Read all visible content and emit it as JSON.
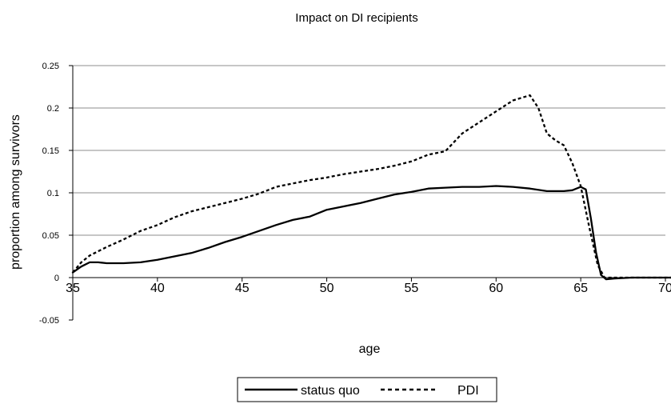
{
  "chart_data": {
    "type": "line",
    "title": "Impact on DI recipients",
    "xlabel": "age",
    "ylabel": "proportion among survivors",
    "xlim": [
      35,
      70
    ],
    "ylim": [
      -0.05,
      0.25
    ],
    "x_ticks": [
      "35",
      "40",
      "45",
      "50",
      "55",
      "60",
      "65",
      "70"
    ],
    "y_ticks": [
      "0.25",
      "0.2",
      "0.15",
      "0.1",
      "0.05",
      "0",
      "-0.05"
    ],
    "grid": "horizontal",
    "legend_position": "bottom",
    "series": [
      {
        "name": "status quo",
        "style": "solid",
        "color": "#000000",
        "points": [
          [
            35.0,
            0.006
          ],
          [
            35.5,
            0.013
          ],
          [
            36.0,
            0.018
          ],
          [
            36.5,
            0.018
          ],
          [
            37.0,
            0.017
          ],
          [
            38.0,
            0.017
          ],
          [
            39.0,
            0.018
          ],
          [
            40.0,
            0.021
          ],
          [
            41.0,
            0.025
          ],
          [
            42.0,
            0.029
          ],
          [
            43.0,
            0.035
          ],
          [
            44.0,
            0.042
          ],
          [
            45.0,
            0.048
          ],
          [
            46.0,
            0.055
          ],
          [
            47.0,
            0.062
          ],
          [
            48.0,
            0.068
          ],
          [
            49.0,
            0.072
          ],
          [
            50.0,
            0.08
          ],
          [
            51.0,
            0.084
          ],
          [
            52.0,
            0.088
          ],
          [
            53.0,
            0.093
          ],
          [
            54.0,
            0.098
          ],
          [
            55.0,
            0.101
          ],
          [
            56.0,
            0.105
          ],
          [
            57.0,
            0.106
          ],
          [
            58.0,
            0.107
          ],
          [
            59.0,
            0.107
          ],
          [
            60.0,
            0.108
          ],
          [
            61.0,
            0.107
          ],
          [
            62.0,
            0.105
          ],
          [
            63.0,
            0.102
          ],
          [
            64.0,
            0.102
          ],
          [
            64.5,
            0.103
          ],
          [
            65.0,
            0.107
          ],
          [
            65.3,
            0.104
          ],
          [
            65.6,
            0.07
          ],
          [
            65.9,
            0.03
          ],
          [
            66.2,
            0.003
          ],
          [
            66.5,
            -0.002
          ],
          [
            67.0,
            -0.001
          ],
          [
            68.0,
            0.0
          ],
          [
            69.0,
            0.0
          ],
          [
            70.0,
            0.0
          ],
          [
            70.5,
            0.0
          ]
        ]
      },
      {
        "name": "PDI",
        "style": "dashed",
        "color": "#000000",
        "points": [
          [
            35.0,
            0.006
          ],
          [
            35.5,
            0.018
          ],
          [
            36.0,
            0.026
          ],
          [
            37.0,
            0.036
          ],
          [
            38.0,
            0.045
          ],
          [
            39.0,
            0.055
          ],
          [
            40.0,
            0.062
          ],
          [
            41.0,
            0.071
          ],
          [
            42.0,
            0.078
          ],
          [
            43.0,
            0.083
          ],
          [
            44.0,
            0.088
          ],
          [
            45.0,
            0.093
          ],
          [
            46.0,
            0.099
          ],
          [
            47.0,
            0.107
          ],
          [
            48.0,
            0.111
          ],
          [
            49.0,
            0.115
          ],
          [
            50.0,
            0.118
          ],
          [
            51.0,
            0.122
          ],
          [
            52.0,
            0.125
          ],
          [
            53.0,
            0.128
          ],
          [
            54.0,
            0.132
          ],
          [
            55.0,
            0.137
          ],
          [
            56.0,
            0.145
          ],
          [
            57.0,
            0.149
          ],
          [
            58.0,
            0.17
          ],
          [
            59.0,
            0.183
          ],
          [
            60.0,
            0.196
          ],
          [
            61.0,
            0.209
          ],
          [
            62.0,
            0.215
          ],
          [
            62.5,
            0.2
          ],
          [
            63.0,
            0.17
          ],
          [
            63.5,
            0.162
          ],
          [
            64.0,
            0.156
          ],
          [
            64.5,
            0.135
          ],
          [
            65.0,
            0.108
          ],
          [
            65.5,
            0.06
          ],
          [
            66.0,
            0.015
          ],
          [
            66.4,
            0.0
          ],
          [
            67.0,
            0.0
          ],
          [
            68.0,
            0.0
          ],
          [
            69.0,
            0.0
          ],
          [
            70.0,
            0.0
          ],
          [
            70.5,
            0.0
          ]
        ]
      }
    ]
  }
}
